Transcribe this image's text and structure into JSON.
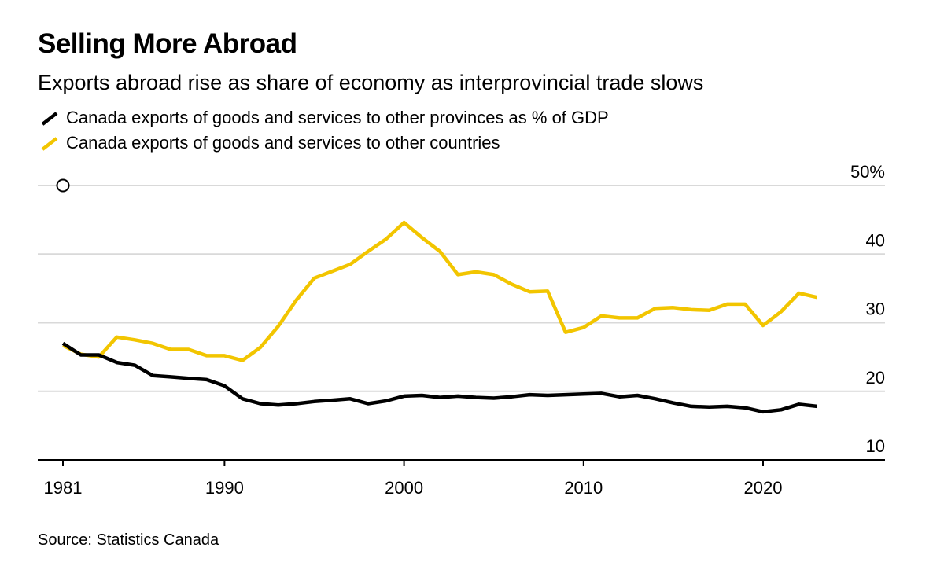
{
  "header": {
    "title": "Selling More Abroad",
    "subtitle": "Exports abroad rise as share of economy as interprovincial trade slows"
  },
  "source": "Source: Statistics Canada",
  "chart_data": {
    "type": "line",
    "title": "Selling More Abroad",
    "subtitle": "Exports abroad rise as share of economy as interprovincial trade slows",
    "xlabel": "",
    "ylabel": "",
    "xlim": [
      1980,
      2026
    ],
    "ylim": [
      10,
      50
    ],
    "y_ticks": [
      10,
      20,
      30,
      40,
      50
    ],
    "y_tick_labels": [
      "10",
      "20",
      "30",
      "40",
      "50%"
    ],
    "x_ticks": [
      1981,
      1990,
      2000,
      2010,
      2020
    ],
    "x_tick_labels": [
      "1981",
      "1990",
      "2000",
      "2010",
      "2020"
    ],
    "grid": "horizontal",
    "legend_position": "top-left",
    "y_axis_side": "right",
    "x": [
      1981,
      1982,
      1983,
      1984,
      1985,
      1986,
      1987,
      1988,
      1989,
      1990,
      1991,
      1992,
      1993,
      1994,
      1995,
      1996,
      1997,
      1998,
      1999,
      2000,
      2001,
      2002,
      2003,
      2004,
      2005,
      2006,
      2007,
      2008,
      2009,
      2010,
      2011,
      2012,
      2013,
      2014,
      2015,
      2016,
      2017,
      2018,
      2019,
      2020,
      2021,
      2022,
      2023
    ],
    "series": [
      {
        "name": "Canada exports of goods and services to other provinces as % of GDP",
        "color": "#000000",
        "values": [
          27.0,
          25.3,
          25.3,
          24.2,
          23.8,
          22.3,
          22.1,
          21.9,
          21.7,
          20.8,
          18.9,
          18.2,
          18.0,
          18.2,
          18.5,
          18.7,
          18.9,
          18.2,
          18.6,
          19.3,
          19.4,
          19.1,
          19.3,
          19.1,
          19.0,
          19.2,
          19.5,
          19.4,
          19.5,
          19.6,
          19.7,
          19.2,
          19.4,
          18.9,
          18.3,
          17.8,
          17.7,
          17.8,
          17.6,
          17.0,
          17.3,
          18.1,
          17.8
        ]
      },
      {
        "name": "Canada exports of goods and services to other countries",
        "color": "#f2c500",
        "values": [
          26.7,
          25.4,
          25.0,
          27.9,
          27.5,
          27.0,
          26.1,
          26.1,
          25.2,
          25.2,
          24.5,
          26.4,
          29.5,
          33.3,
          36.5,
          37.5,
          38.5,
          40.4,
          42.2,
          44.6,
          42.4,
          40.4,
          37.0,
          37.4,
          37.0,
          35.6,
          34.5,
          34.6,
          28.6,
          29.3,
          31.0,
          30.7,
          30.7,
          32.1,
          32.2,
          31.9,
          31.8,
          32.7,
          32.7,
          29.6,
          31.6,
          34.3,
          33.7
        ]
      }
    ],
    "annotations": [
      {
        "type": "circle-marker",
        "x": 1981,
        "y": 50
      }
    ]
  }
}
